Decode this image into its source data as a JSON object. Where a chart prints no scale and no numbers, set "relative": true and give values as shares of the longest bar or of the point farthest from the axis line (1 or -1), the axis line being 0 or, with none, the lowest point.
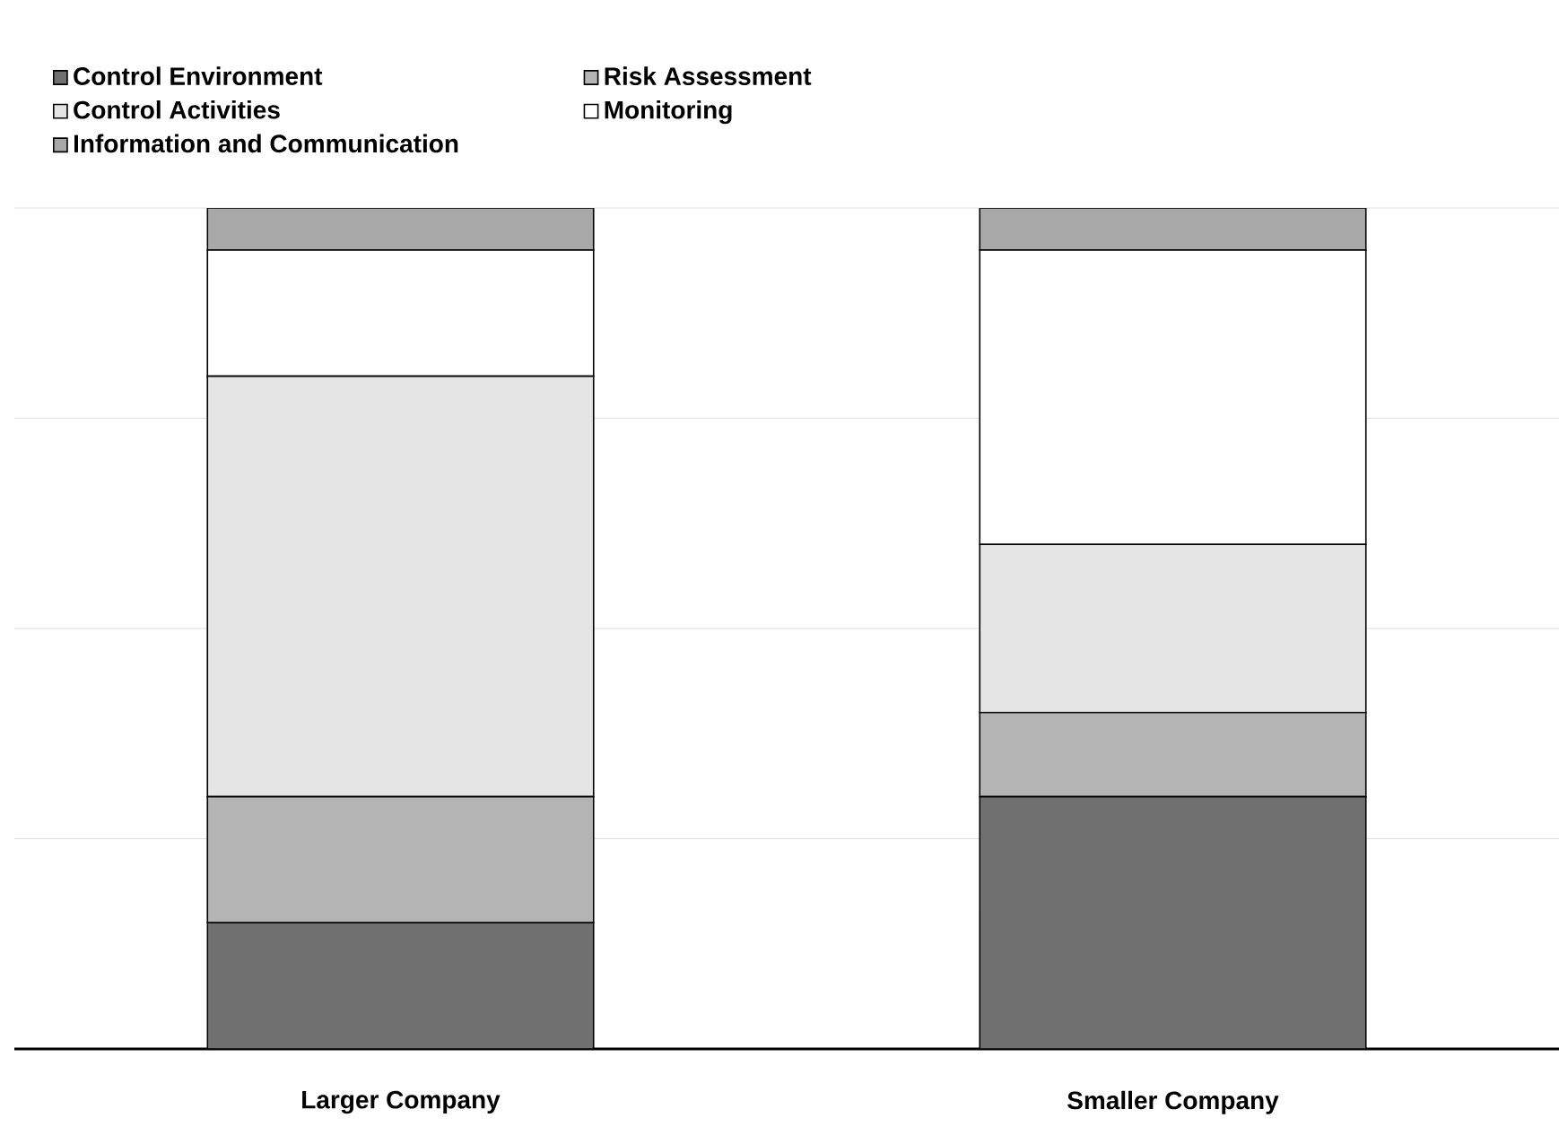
{
  "chart_data": {
    "type": "bar",
    "stacked": true,
    "relative": true,
    "grid": "y",
    "legend": "top left",
    "categories": [
      "Larger Company",
      "Smaller Company"
    ],
    "series": [
      {
        "name": "Control Environment",
        "color": "#707070",
        "values": [
          0.15,
          0.3
        ]
      },
      {
        "name": "Risk Assessment",
        "color": "#b4b4b4",
        "values": [
          0.15,
          0.1
        ]
      },
      {
        "name": "Control Activities",
        "color": "#e4e4e4",
        "values": [
          0.5,
          0.2
        ]
      },
      {
        "name": "Monitoring",
        "color": "#ffffff",
        "values": [
          0.15,
          0.35
        ]
      },
      {
        "name": "Information and Communication",
        "color": "#a8a8a8",
        "values": [
          0.05,
          0.05
        ]
      }
    ]
  }
}
